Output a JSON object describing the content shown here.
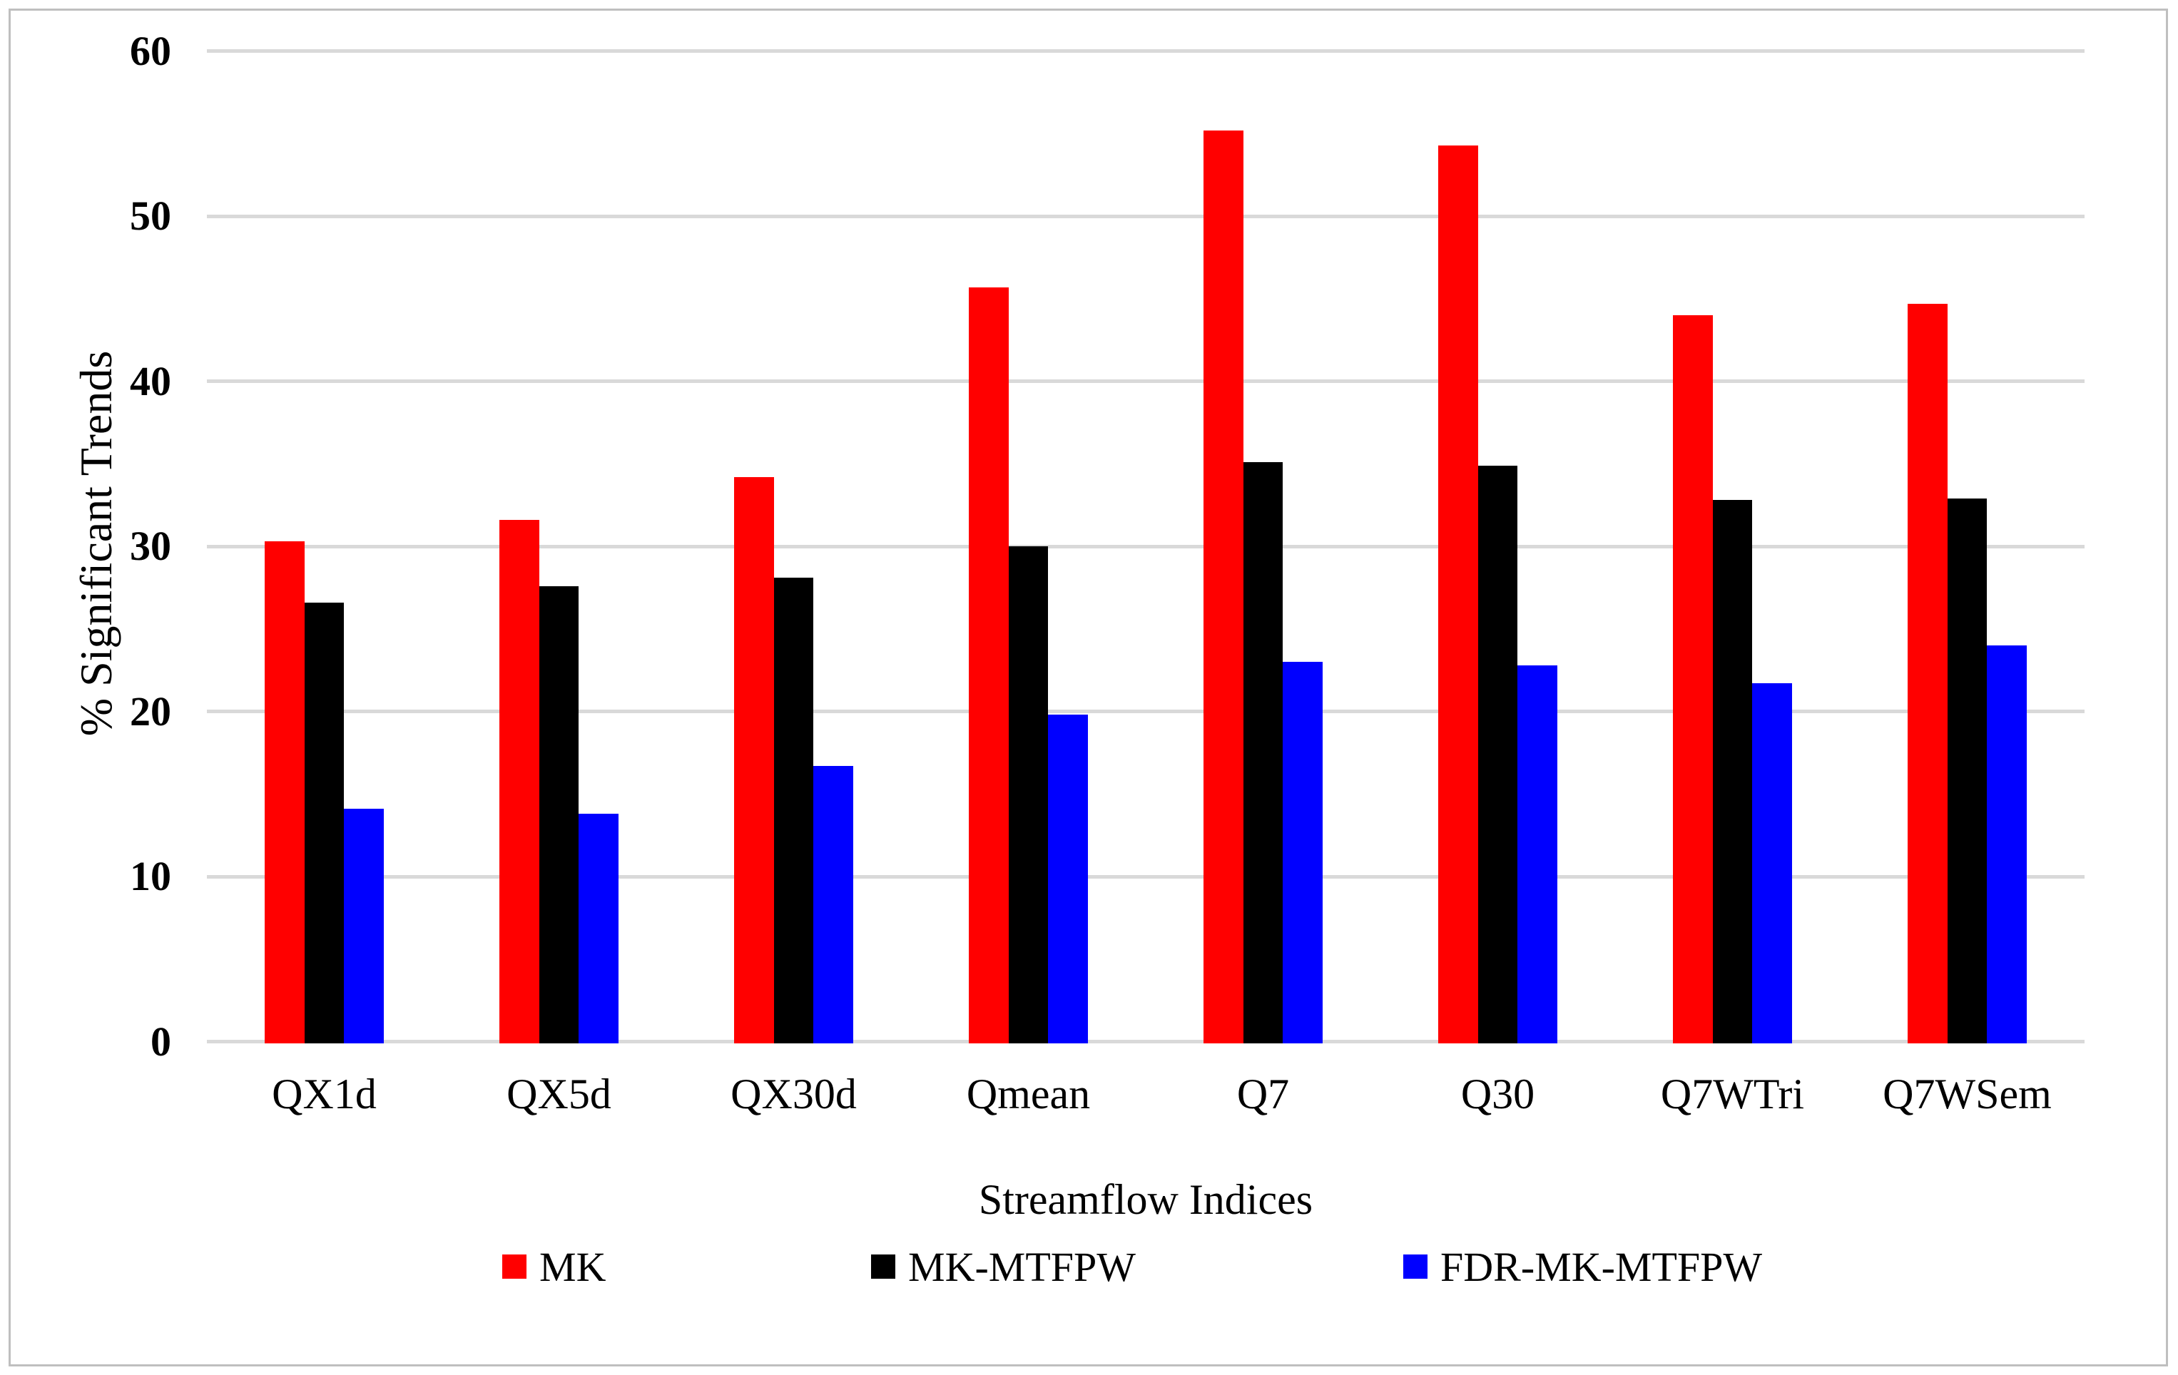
{
  "figure": {
    "y_axis_title": "% Significant Trends",
    "x_axis_title": "Streamflow Indices"
  },
  "chart_data": {
    "type": "bar",
    "title": "",
    "xlabel": "Streamflow Indices",
    "ylabel": "% Significant Trends",
    "categories": [
      "QX1d",
      "QX5d",
      "QX30d",
      "Qmean",
      "Q7",
      "Q30",
      "Q7WTri",
      "Q7WSem"
    ],
    "series": [
      {
        "name": "MK",
        "color": "#ff0000",
        "values": [
          30.4,
          31.7,
          34.3,
          45.8,
          55.3,
          54.4,
          44.1,
          44.8
        ]
      },
      {
        "name": "MK-MTFPW",
        "color": "#000000",
        "values": [
          26.7,
          27.7,
          28.2,
          30.1,
          35.2,
          35.0,
          32.9,
          33.0
        ]
      },
      {
        "name": "FDR-MK-MTFPW",
        "color": "#0000ff",
        "values": [
          14.2,
          13.9,
          16.8,
          19.9,
          23.1,
          22.9,
          21.8,
          24.1
        ]
      }
    ],
    "y_ticks": [
      0,
      10,
      20,
      30,
      40,
      50,
      60
    ],
    "ylim": [
      0,
      60
    ],
    "grid": true,
    "gridline_color": "#d9d9d9",
    "frame_color": "#bfbfbf",
    "legend_position": "bottom"
  },
  "legend": {
    "items": [
      {
        "label": "MK",
        "color": "#ff0000"
      },
      {
        "label": "MK-MTFPW",
        "color": "#000000"
      },
      {
        "label": "FDR-MK-MTFPW",
        "color": "#0000ff"
      }
    ]
  }
}
